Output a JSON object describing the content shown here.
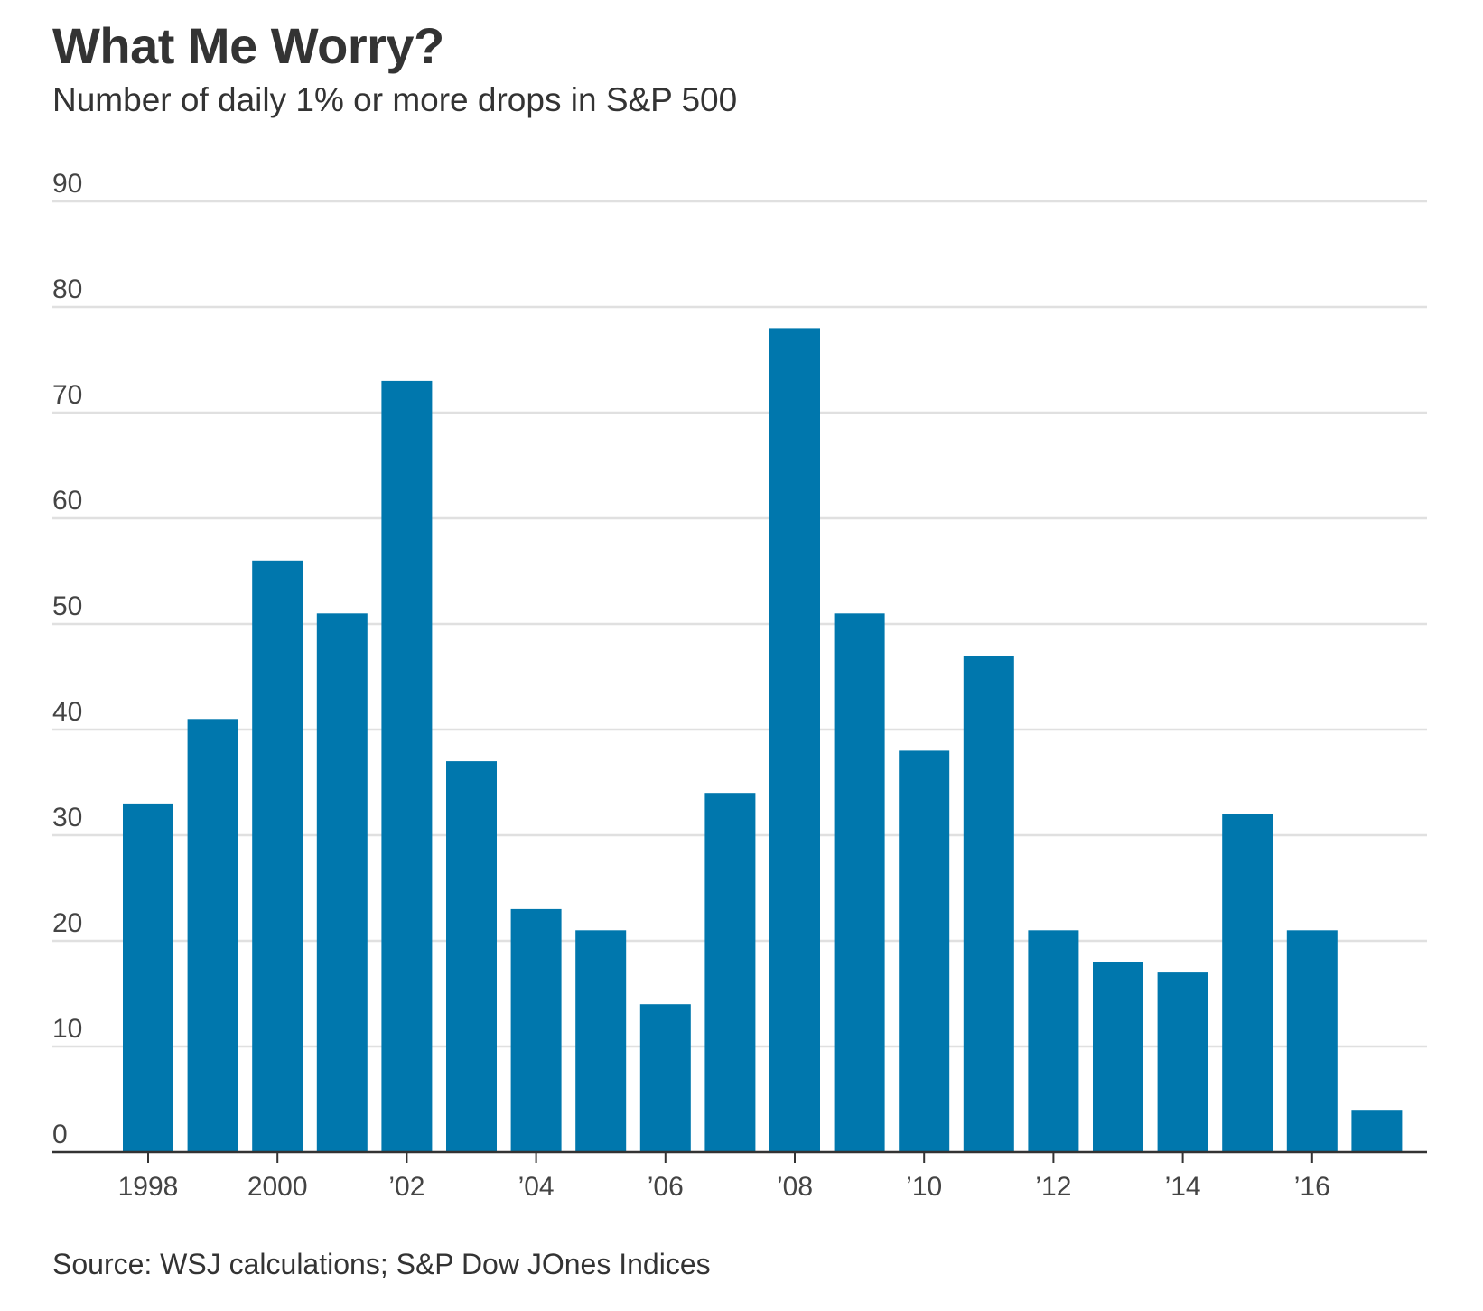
{
  "title": "What Me Worry?",
  "subtitle": "Number of daily 1% or more drops in S&P 500",
  "source": "Source: WSJ calculations; S&P Dow JOnes Indices",
  "colors": {
    "bar": "#0077ad",
    "grid": "#e0e0e0",
    "axis": "#333333",
    "text": "#333333"
  },
  "chart_data": {
    "type": "bar",
    "categories": [
      "1998",
      "1999",
      "2000",
      "2001",
      "2002",
      "2003",
      "2004",
      "2005",
      "2006",
      "2007",
      "2008",
      "2009",
      "2010",
      "2011",
      "2012",
      "2013",
      "2014",
      "2015",
      "2016",
      "2017"
    ],
    "values": [
      33,
      41,
      56,
      51,
      73,
      37,
      23,
      21,
      14,
      34,
      78,
      51,
      38,
      47,
      21,
      18,
      17,
      32,
      21,
      4
    ],
    "x_tick_labels": [
      {
        "category": "1998",
        "label": "1998"
      },
      {
        "category": "2000",
        "label": "2000"
      },
      {
        "category": "2002",
        "label": "’02"
      },
      {
        "category": "2004",
        "label": "’04"
      },
      {
        "category": "2006",
        "label": "’06"
      },
      {
        "category": "2008",
        "label": "’08"
      },
      {
        "category": "2010",
        "label": "’10"
      },
      {
        "category": "2012",
        "label": "’12"
      },
      {
        "category": "2014",
        "label": "’14"
      },
      {
        "category": "2016",
        "label": "’16"
      }
    ],
    "y_ticks": [
      0,
      10,
      20,
      30,
      40,
      50,
      60,
      70,
      80,
      90
    ],
    "ylim": [
      0,
      90
    ],
    "xlabel": "",
    "ylabel": "",
    "grid": true,
    "legend": false
  }
}
